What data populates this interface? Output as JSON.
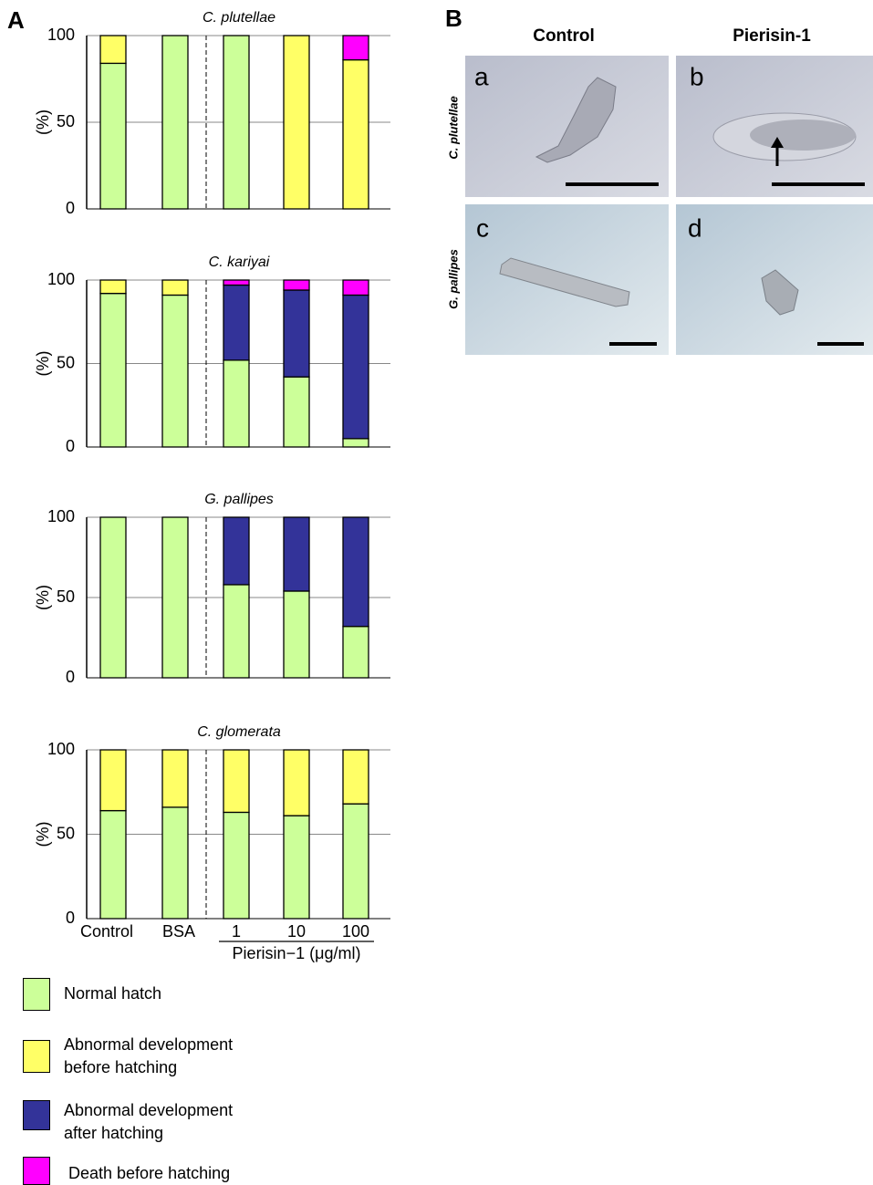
{
  "panel_a_label": "A",
  "panel_b": {
    "label": "B",
    "columns": [
      "Control",
      "Pierisin-1"
    ],
    "rows": [
      "C. plutellae",
      "G. pallipes"
    ],
    "images": [
      "a",
      "b",
      "c",
      "d"
    ]
  },
  "chart_data": [
    {
      "type": "bar",
      "stacked": true,
      "title": "C. plutellae",
      "ylabel": "(%)",
      "categories": [
        null,
        null,
        null,
        null,
        null
      ],
      "series": [
        {
          "name": "Normal hatch",
          "color": "#ccff99",
          "values": [
            84,
            100,
            100,
            0,
            0
          ]
        },
        {
          "name": "Abnormal development\nbefore hatching",
          "color": "#ffff66",
          "values": [
            16,
            0,
            0,
            100,
            86
          ]
        },
        {
          "name": "Abnormal development\nafter hatching",
          "color": "#333399",
          "values": [
            0,
            0,
            0,
            0,
            0
          ]
        },
        {
          "name": "Death before hatching",
          "color": "#ff00ff",
          "values": [
            0,
            0,
            0,
            0,
            14
          ]
        }
      ],
      "ylim": [
        0,
        100
      ],
      "yticks": [
        0,
        50,
        100
      ],
      "grid": true
    },
    {
      "type": "bar",
      "stacked": true,
      "title": "C. kariyai",
      "ylabel": "(%)",
      "categories": [
        null,
        null,
        null,
        null,
        null
      ],
      "series": [
        {
          "color": "#ccff99",
          "values": [
            92,
            91,
            52,
            42,
            5
          ]
        },
        {
          "color": "#ffff66",
          "values": [
            8,
            9,
            0,
            0,
            0
          ]
        },
        {
          "color": "#333399",
          "values": [
            0,
            0,
            45,
            52,
            86
          ]
        },
        {
          "color": "#ff00ff",
          "values": [
            0,
            0,
            3,
            6,
            9
          ]
        }
      ],
      "ylim": [
        0,
        100
      ],
      "yticks": [
        0,
        50,
        100
      ],
      "grid": true
    },
    {
      "type": "bar",
      "stacked": true,
      "title": "G. pallipes",
      "ylabel": "(%)",
      "categories": [
        null,
        null,
        null,
        null,
        null
      ],
      "series": [
        {
          "color": "#ccff99",
          "values": [
            100,
            100,
            58,
            54,
            32
          ]
        },
        {
          "color": "#ffff66",
          "values": [
            0,
            0,
            0,
            0,
            0
          ]
        },
        {
          "color": "#333399",
          "values": [
            0,
            0,
            42,
            46,
            68
          ]
        },
        {
          "color": "#ff00ff",
          "values": [
            0,
            0,
            0,
            0,
            0
          ]
        }
      ],
      "ylim": [
        0,
        100
      ],
      "yticks": [
        0,
        50,
        100
      ],
      "grid": true
    },
    {
      "type": "bar",
      "stacked": true,
      "title": "C. glomerata",
      "ylabel": "(%)",
      "xlabel": "Pierisin−1 (μg/ml)",
      "categories": [
        "Control",
        "BSA",
        "1",
        "10",
        "100"
      ],
      "series": [
        {
          "color": "#ccff99",
          "values": [
            64,
            66,
            63,
            61,
            68
          ]
        },
        {
          "color": "#ffff66",
          "values": [
            36,
            34,
            37,
            39,
            32
          ]
        },
        {
          "color": "#333399",
          "values": [
            0,
            0,
            0,
            0,
            0
          ]
        },
        {
          "color": "#ff00ff",
          "values": [
            0,
            0,
            0,
            0,
            0
          ]
        }
      ],
      "ylim": [
        0,
        100
      ],
      "yticks": [
        0,
        50,
        100
      ],
      "grid": true
    }
  ]
}
